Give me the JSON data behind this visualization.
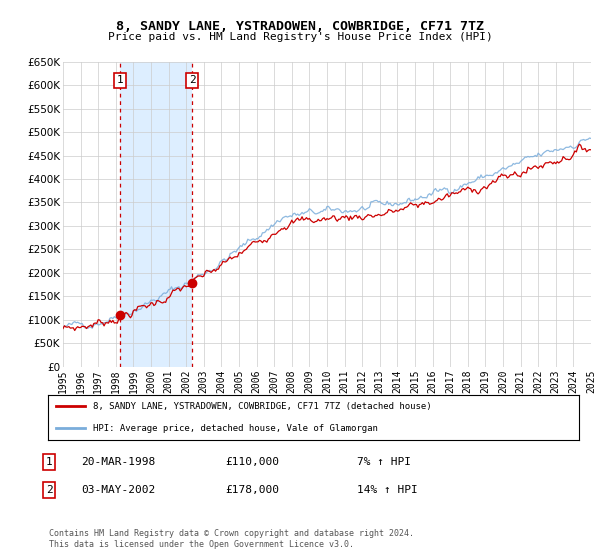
{
  "title": "8, SANDY LANE, YSTRADOWEN, COWBRIDGE, CF71 7TZ",
  "subtitle": "Price paid vs. HM Land Registry's House Price Index (HPI)",
  "ytick_values": [
    0,
    50000,
    100000,
    150000,
    200000,
    250000,
    300000,
    350000,
    400000,
    450000,
    500000,
    550000,
    600000,
    650000
  ],
  "year_start": 1995,
  "year_end": 2025,
  "purchase1_year": 1998.22,
  "purchase1_price": 110000,
  "purchase2_year": 2002.34,
  "purchase2_price": 178000,
  "legend_line1": "8, SANDY LANE, YSTRADOWEN, COWBRIDGE, CF71 7TZ (detached house)",
  "legend_line2": "HPI: Average price, detached house, Vale of Glamorgan",
  "annotation1_date": "20-MAR-1998",
  "annotation1_price": "£110,000",
  "annotation1_hpi": "7% ↑ HPI",
  "annotation2_date": "03-MAY-2002",
  "annotation2_price": "£178,000",
  "annotation2_hpi": "14% ↑ HPI",
  "copyright_text": "Contains HM Land Registry data © Crown copyright and database right 2024.\nThis data is licensed under the Open Government Licence v3.0.",
  "line_color_red": "#cc0000",
  "line_color_blue": "#7aaddb",
  "shading_color": "#ddeeff",
  "grid_color": "#cccccc",
  "background_color": "#ffffff"
}
